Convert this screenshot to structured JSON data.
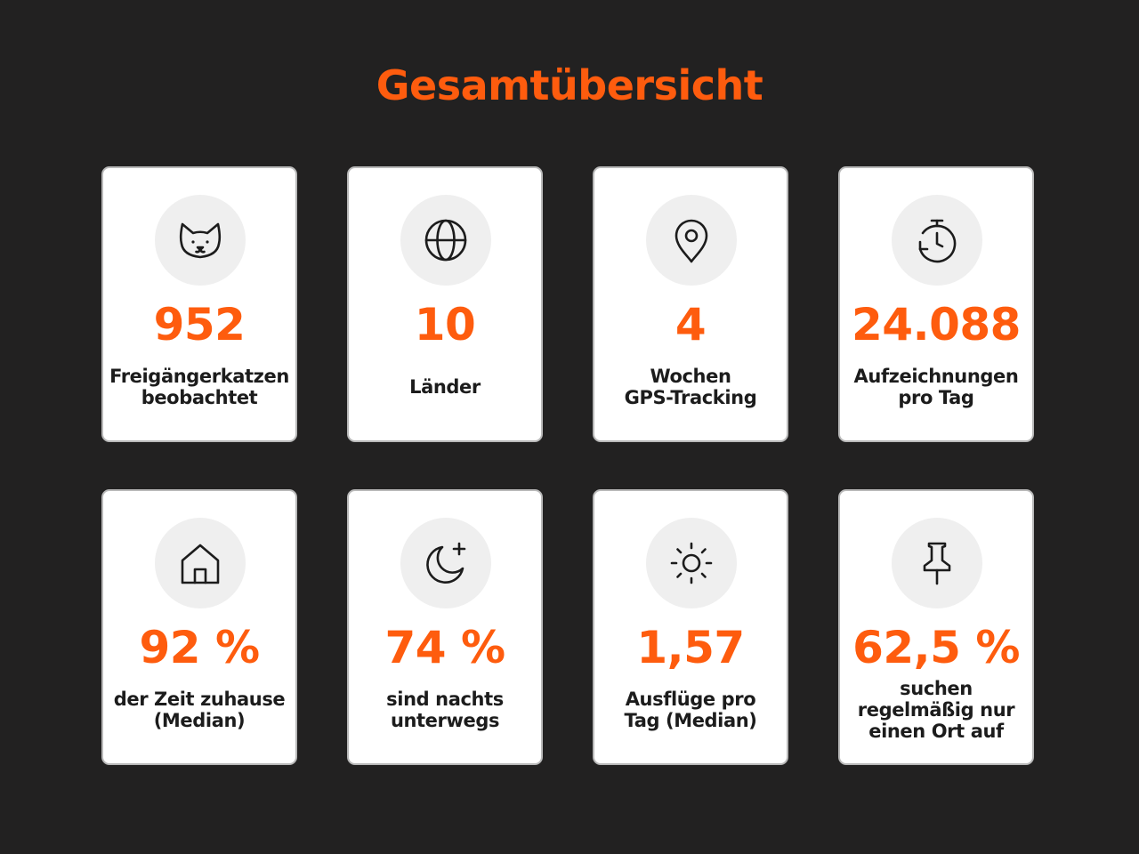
{
  "title": "Gesamtübersicht",
  "colors": {
    "background": "#222121",
    "accent": "#fe5c0e",
    "card": "#ffffff",
    "icon_circle": "#efefef",
    "text": "#1c1c1c"
  },
  "cards": [
    {
      "icon": "cat-icon",
      "value": "952",
      "label": "Freigängerkatzen\nbeobachtet"
    },
    {
      "icon": "globe-icon",
      "value": "10",
      "label": "Länder"
    },
    {
      "icon": "location-pin-icon",
      "value": "4",
      "label": "Wochen\nGPS-Tracking"
    },
    {
      "icon": "stopwatch-icon",
      "value": "24.088",
      "label": "Aufzeichnungen\npro Tag"
    },
    {
      "icon": "home-icon",
      "value": "92 %",
      "label": "der Zeit zuhause\n(Median)"
    },
    {
      "icon": "moon-icon",
      "value": "74 %",
      "label": "sind nachts\nunterwegs"
    },
    {
      "icon": "sun-icon",
      "value": "1,57",
      "label": "Ausflüge pro\nTag (Median)"
    },
    {
      "icon": "pushpin-icon",
      "value": "62,5 %",
      "label": "suchen\nregelmäßig nur\neinen Ort auf"
    }
  ]
}
